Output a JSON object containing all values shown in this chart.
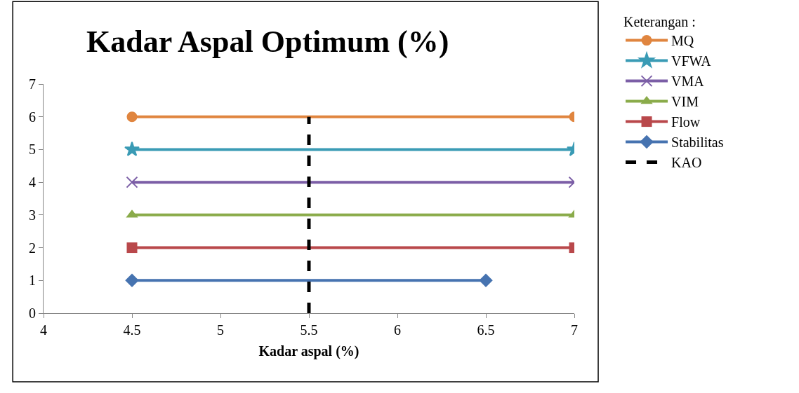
{
  "chart_data": {
    "type": "line",
    "title": "Kadar Aspal Optimum (%)",
    "xlabel": "Kadar aspal (%)",
    "legend_title": "Keterangan :",
    "xlim": [
      4,
      7
    ],
    "xticks": [
      4,
      4.5,
      5,
      5.5,
      6,
      6.5,
      7
    ],
    "ylim": [
      0,
      7
    ],
    "yticks": [
      0,
      1,
      2,
      3,
      4,
      5,
      6,
      7
    ],
    "grid": false,
    "legend": "right",
    "line_style": "solid",
    "series": [
      {
        "name": "MQ",
        "color": "#e0853f",
        "x": [
          4.5,
          7
        ],
        "values": [
          6,
          6
        ],
        "marker": "circle"
      },
      {
        "name": "VFWA",
        "color": "#3a9bb5",
        "x": [
          4.5,
          7
        ],
        "values": [
          5,
          5
        ],
        "marker": "star"
      },
      {
        "name": "VMA",
        "color": "#7b5ea6",
        "x": [
          4.5,
          7
        ],
        "values": [
          4,
          4
        ],
        "marker": "cross"
      },
      {
        "name": "VIM",
        "color": "#8aab4a",
        "x": [
          4.5,
          7
        ],
        "values": [
          3,
          3
        ],
        "marker": "triangle"
      },
      {
        "name": "Flow",
        "color": "#b9484b",
        "x": [
          4.5,
          7
        ],
        "values": [
          2,
          2
        ],
        "marker": "square"
      },
      {
        "name": "Stabilitas",
        "color": "#4673b0",
        "x": [
          4.5,
          6.5
        ],
        "values": [
          1,
          1
        ],
        "marker": "diamond"
      },
      {
        "name": "KAO",
        "color": "#000000",
        "x": [
          5.5,
          5.5
        ],
        "values": [
          0,
          6
        ],
        "marker": "none",
        "line_style": "dashed"
      }
    ]
  }
}
